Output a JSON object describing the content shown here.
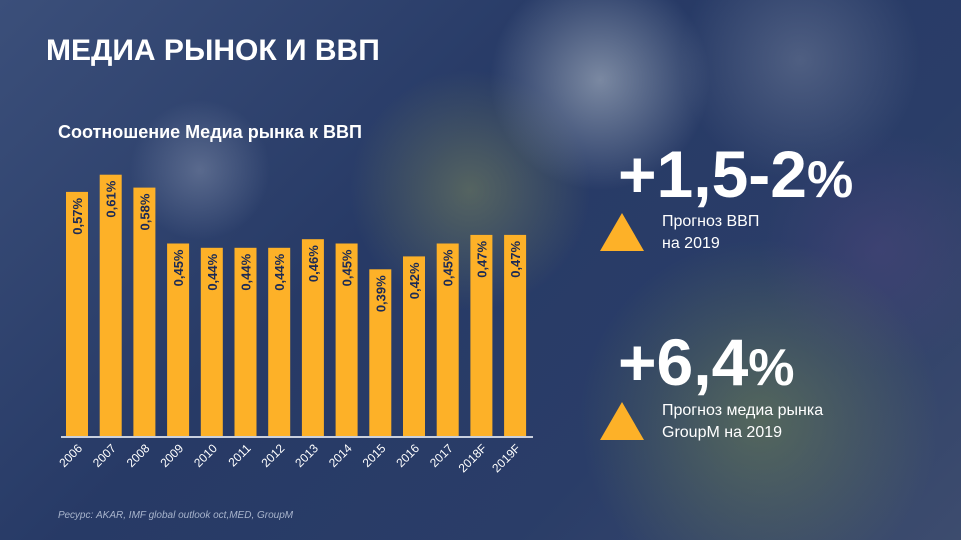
{
  "title": "МЕДИА РЫНОК И ВВП",
  "chart_data": {
    "type": "bar",
    "title": "Соотношение Медиа рынка к ВВП",
    "categories": [
      "2006",
      "2007",
      "2008",
      "2009",
      "2010",
      "2011",
      "2012",
      "2013",
      "2014",
      "2015",
      "2016",
      "2017",
      "2018F",
      "2019F"
    ],
    "values": [
      0.57,
      0.61,
      0.58,
      0.45,
      0.44,
      0.44,
      0.44,
      0.46,
      0.45,
      0.39,
      0.42,
      0.45,
      0.47,
      0.47
    ],
    "labels": [
      "0,57%",
      "0,61%",
      "0,58%",
      "0,45%",
      "0,44%",
      "0,44%",
      "0,44%",
      "0,46%",
      "0,45%",
      "0,39%",
      "0,42%",
      "0,45%",
      "0,47%",
      "0,47%"
    ],
    "xlabel": "",
    "ylabel": "",
    "ylim": [
      0,
      0.62
    ],
    "bar_color": "#fdb128",
    "label_color": "#1b2a55"
  },
  "kpis": [
    {
      "value": "+1,5-2",
      "unit": "%",
      "text1": "Прогноз ВВП",
      "text2": "на 2019"
    },
    {
      "value": "+6,4",
      "unit": "%",
      "text1": "Прогноз медиа рынка",
      "text2": "GroupM на 2019"
    }
  ],
  "source": "Ресурс: AKAR, IMF global outlook oct,MED, GroupM"
}
